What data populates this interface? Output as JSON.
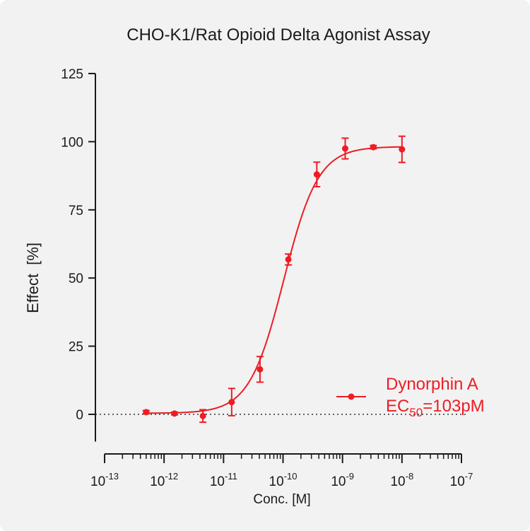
{
  "chart_data": {
    "type": "scatter",
    "title": "CHO-K1/Rat Opioid Delta Agonist Assay",
    "xlabel": "Conc. [M]",
    "ylabel": "Effect  [%]",
    "x_scale": "log",
    "xlim": [
      1e-13,
      1e-07
    ],
    "ylim": [
      -10,
      125
    ],
    "y_ticks": [
      0,
      25,
      50,
      75,
      100,
      125
    ],
    "x_ticks": [
      {
        "base": "10",
        "exp": "-13"
      },
      {
        "base": "10",
        "exp": "-12"
      },
      {
        "base": "10",
        "exp": "-11"
      },
      {
        "base": "10",
        "exp": "-10"
      },
      {
        "base": "10",
        "exp": "-9"
      },
      {
        "base": "10",
        "exp": "-8"
      },
      {
        "base": "10",
        "exp": "-7"
      }
    ],
    "grid": false,
    "reference_line_y": 0,
    "legend": {
      "placement": "bottom-right",
      "name": "Dynorphin A",
      "ec_prefix": "EC",
      "ec_sub": "50",
      "ec_value": "=103pM"
    },
    "series": [
      {
        "name": "Dynorphin A",
        "color": "#ee1c25",
        "x": [
          5e-13,
          1.5e-12,
          4.5e-12,
          1.37e-11,
          4.1e-11,
          1.23e-10,
          3.7e-10,
          1.11e-09,
          3.3e-09,
          1e-08
        ],
        "y": [
          0.8,
          0.3,
          -0.6,
          4.5,
          16.5,
          56.8,
          88.0,
          97.5,
          98.0,
          97.2
        ],
        "error": [
          0.6,
          0.5,
          2.3,
          5.0,
          4.7,
          2.0,
          4.5,
          3.8,
          0.6,
          4.8
        ],
        "fit": {
          "bottom": 0.4,
          "top": 98.2,
          "ec50": 1.03e-10,
          "hill": 1.5
        }
      }
    ]
  }
}
